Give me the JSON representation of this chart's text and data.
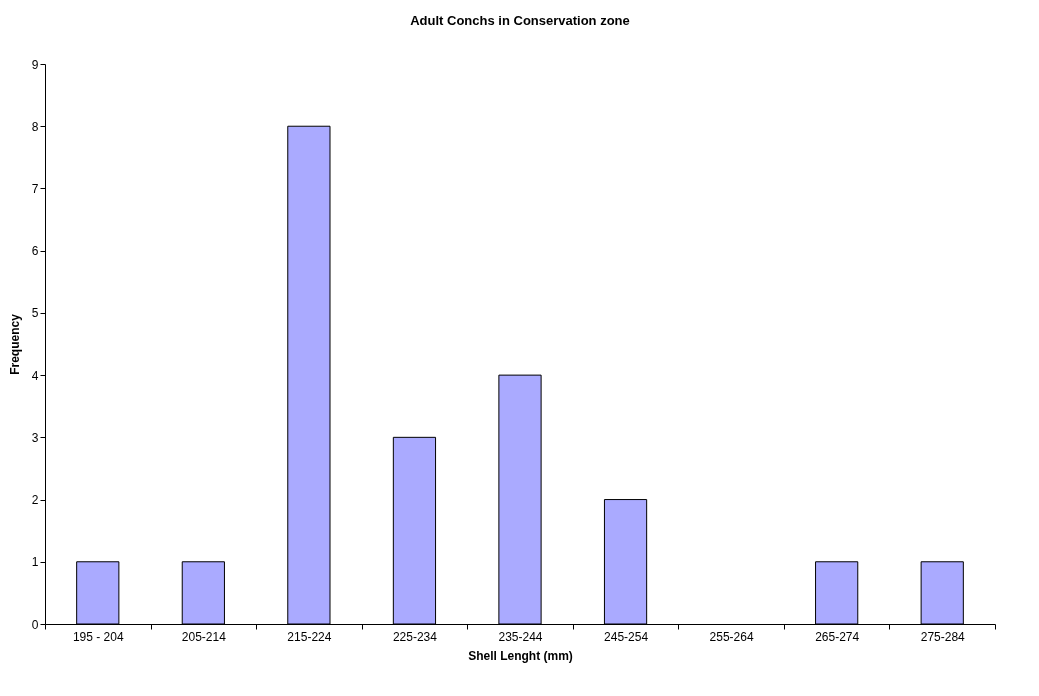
{
  "chart_data": {
    "type": "bar",
    "title": "Adult Conchs in Conservation zone",
    "xlabel": "Shell Lenght (mm)",
    "ylabel": "Frequency",
    "categories": [
      "195 - 204",
      "205-214",
      "215-224",
      "225-234",
      "235-244",
      "245-254",
      "255-264",
      "265-274",
      "275-284"
    ],
    "values": [
      1,
      1,
      8,
      3,
      4,
      2,
      0,
      1,
      1
    ],
    "color": "#aaaaff",
    "ylim": [
      0,
      9
    ],
    "yticks": [
      0,
      1,
      2,
      3,
      4,
      5,
      6,
      7,
      8,
      9
    ],
    "grid": false
  }
}
